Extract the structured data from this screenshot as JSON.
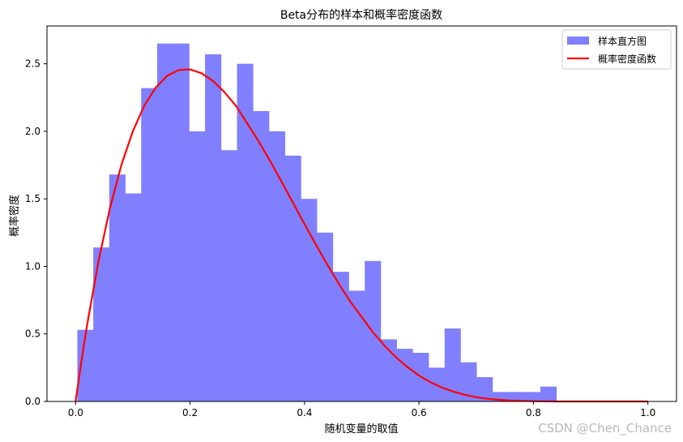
{
  "chart_data": {
    "type": "bar",
    "title": "Beta分布的样本和概率密度函数",
    "xlabel": "随机变量的取值",
    "ylabel": "概率密度",
    "xlim": [
      -0.05,
      1.05
    ],
    "ylim": [
      0,
      2.78
    ],
    "x_ticks": [
      0.0,
      0.2,
      0.4,
      0.6,
      0.8,
      1.0
    ],
    "x_tick_labels": [
      "0.0",
      "0.2",
      "0.4",
      "0.6",
      "0.8",
      "1.0"
    ],
    "y_ticks": [
      0.0,
      0.5,
      1.0,
      1.5,
      2.0,
      2.5
    ],
    "y_tick_labels": [
      "0.0",
      "0.5",
      "1.0",
      "1.5",
      "2.0",
      "2.5"
    ],
    "grid": false,
    "legend_position": "top-right",
    "histogram": {
      "name": "样本直方图",
      "color": "#8080ff",
      "bin_edges": [
        0.003,
        0.0309,
        0.0588,
        0.0867,
        0.1146,
        0.1425,
        0.1704,
        0.1983,
        0.2262,
        0.2541,
        0.282,
        0.3099,
        0.3378,
        0.3657,
        0.3936,
        0.4215,
        0.4494,
        0.4773,
        0.5052,
        0.5331,
        0.561,
        0.5889,
        0.6168,
        0.6447,
        0.6726,
        0.7005,
        0.7284,
        0.7563,
        0.7842,
        0.8121,
        0.84
      ],
      "values": [
        0.53,
        1.14,
        1.68,
        1.54,
        2.32,
        2.65,
        2.65,
        2.0,
        2.57,
        1.86,
        2.5,
        2.15,
        2.0,
        1.82,
        1.5,
        1.25,
        0.96,
        0.82,
        1.04,
        0.46,
        0.39,
        0.36,
        0.25,
        0.54,
        0.29,
        0.18,
        0.07,
        0.07,
        0.07,
        0.11
      ]
    },
    "pdf": {
      "name": "概率密度函数",
      "color": "#ff0000",
      "x": [
        0.0,
        0.01,
        0.02,
        0.04,
        0.06,
        0.08,
        0.1,
        0.12,
        0.14,
        0.16,
        0.18,
        0.2,
        0.22,
        0.24,
        0.26,
        0.28,
        0.3,
        0.32,
        0.34,
        0.36,
        0.38,
        0.4,
        0.42,
        0.44,
        0.46,
        0.48,
        0.5,
        0.52,
        0.54,
        0.56,
        0.58,
        0.6,
        0.62,
        0.64,
        0.66,
        0.68,
        0.7,
        0.72,
        0.74,
        0.76,
        0.78,
        0.8,
        0.82,
        0.84,
        0.86,
        0.88,
        0.9,
        0.92,
        0.94,
        0.96,
        0.98,
        1.0
      ],
      "y": [
        0.0,
        0.294,
        0.564,
        1.038,
        1.431,
        1.751,
        2.0,
        2.19,
        2.324,
        2.411,
        2.454,
        2.458,
        2.43,
        2.373,
        2.291,
        2.189,
        2.058,
        1.925,
        1.779,
        1.626,
        1.47,
        1.313,
        1.16,
        1.011,
        0.871,
        0.739,
        0.625,
        0.509,
        0.412,
        0.326,
        0.254,
        0.192,
        0.143,
        0.103,
        0.073,
        0.049,
        0.032,
        0.02,
        0.012,
        0.007,
        0.004,
        0.002,
        0.001,
        0.0,
        0.0,
        0.0,
        0.0,
        0.0,
        0.0,
        0.0,
        0.0,
        0.0
      ]
    }
  },
  "watermark": "CSDN @Chen_Chance"
}
